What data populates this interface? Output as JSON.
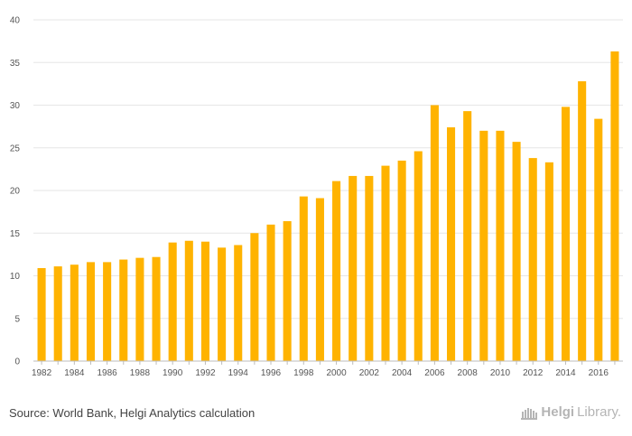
{
  "chart_data": {
    "type": "bar",
    "title": "",
    "xlabel": "",
    "ylabel": "",
    "ylim": [
      0,
      40
    ],
    "yticks": [
      0,
      5,
      10,
      15,
      20,
      25,
      30,
      35,
      40
    ],
    "categories": [
      "1982",
      "1983",
      "1984",
      "1985",
      "1986",
      "1987",
      "1988",
      "1989",
      "1990",
      "1991",
      "1992",
      "1993",
      "1994",
      "1995",
      "1996",
      "1997",
      "1998",
      "1999",
      "2000",
      "2001",
      "2002",
      "2003",
      "2004",
      "2005",
      "2006",
      "2007",
      "2008",
      "2009",
      "2010",
      "2011",
      "2012",
      "2013",
      "2014",
      "2015",
      "2016",
      "2017"
    ],
    "xtick_labels": [
      "1982",
      "",
      "1984",
      "",
      "1986",
      "",
      "1988",
      "",
      "1990",
      "",
      "1992",
      "",
      "1994",
      "",
      "1996",
      "",
      "1998",
      "",
      "2000",
      "",
      "2002",
      "",
      "2004",
      "",
      "2006",
      "",
      "2008",
      "",
      "2010",
      "",
      "2012",
      "",
      "2014",
      "",
      "2016",
      ""
    ],
    "values": [
      10.9,
      11.1,
      11.3,
      11.6,
      11.6,
      11.9,
      12.1,
      12.2,
      13.9,
      14.1,
      14.0,
      13.3,
      13.6,
      15.0,
      16.0,
      16.4,
      19.3,
      19.1,
      21.1,
      21.7,
      21.7,
      22.9,
      23.5,
      24.6,
      30.0,
      27.4,
      29.3,
      27.0,
      27.0,
      25.7,
      23.8,
      23.3,
      29.8,
      32.8,
      28.4,
      36.3
    ],
    "bar_color": "#FFB300",
    "grid": true
  },
  "source_text": "Source: World Bank, Helgi Analytics calculation",
  "logo": {
    "name_bold": "Helgi",
    "name_rest": "Library."
  }
}
